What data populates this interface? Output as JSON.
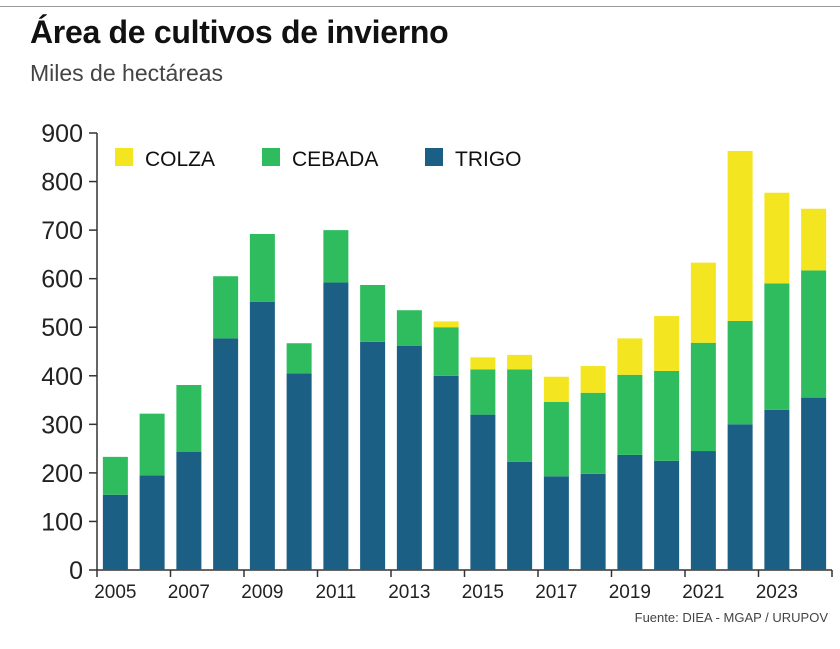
{
  "title": "Área de cultivos de invierno",
  "subtitle": "Miles de hectáreas",
  "source": "Fuente: DIEA - MGAP / URUPOV",
  "colors": {
    "colza": "#f4e521",
    "cebada": "#2ebc5f",
    "trigo": "#1b5f85"
  },
  "chart_data": {
    "type": "bar",
    "stacked": true,
    "categories": [
      "2005",
      "2006",
      "2007",
      "2008",
      "2009",
      "2010",
      "2011",
      "2012",
      "2013",
      "2014",
      "2015",
      "2016",
      "2017",
      "2018",
      "2019",
      "2020",
      "2021",
      "2022",
      "2023",
      "2024"
    ],
    "x_tick_labels": [
      "2005",
      "2007",
      "2009",
      "2011",
      "2013",
      "2015",
      "2017",
      "2019",
      "2021",
      "2023"
    ],
    "series": [
      {
        "name": "TRIGO",
        "color": "#1b5f85",
        "values": [
          155,
          195,
          243,
          477,
          552,
          405,
          592,
          470,
          462,
          400,
          320,
          223,
          193,
          198,
          237,
          225,
          245,
          300,
          330,
          355
        ]
      },
      {
        "name": "CEBADA",
        "color": "#2ebc5f",
        "values": [
          78,
          127,
          138,
          128,
          140,
          62,
          108,
          117,
          73,
          100,
          93,
          190,
          153,
          167,
          165,
          185,
          223,
          213,
          260,
          262
        ]
      },
      {
        "name": "COLZA",
        "color": "#f4e521",
        "values": [
          0,
          0,
          0,
          0,
          0,
          0,
          0,
          0,
          0,
          12,
          25,
          30,
          52,
          55,
          75,
          113,
          165,
          350,
          187,
          127
        ]
      }
    ],
    "legend_order": [
      "COLZA",
      "CEBADA",
      "TRIGO"
    ],
    "legend_position": "top-left",
    "ylim": [
      0,
      900
    ],
    "yticks": [
      0,
      100,
      200,
      300,
      400,
      500,
      600,
      700,
      800,
      900
    ],
    "grid": false
  }
}
